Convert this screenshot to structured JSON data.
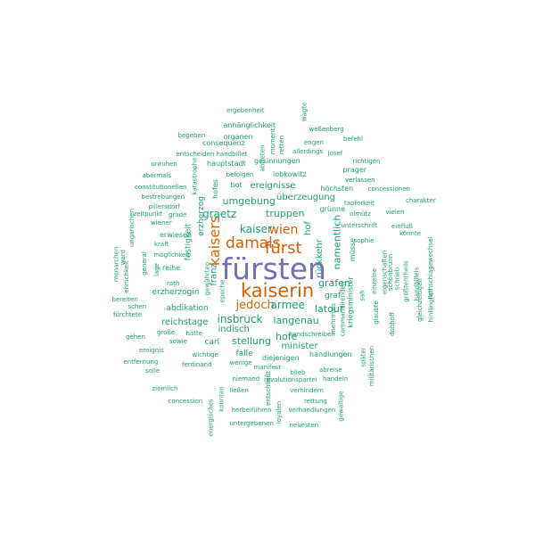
{
  "colors": {
    "primary": "#7570b3",
    "secondary": "#d95f02",
    "tertiary": "#1b9e77"
  },
  "words": [
    {
      "text": "fürsten",
      "weight": "primary"
    },
    {
      "text": "kaiserin",
      "weight": "secondary"
    },
    {
      "text": "damals",
      "weight": "secondary"
    },
    {
      "text": "fürst",
      "weight": "secondary"
    },
    {
      "text": "kaisers",
      "weight": "secondary"
    },
    {
      "text": "wien",
      "weight": "secondary"
    },
    {
      "text": "jedoch",
      "weight": "secondary"
    },
    {
      "text": "armee",
      "weight": "tertiary"
    },
    {
      "text": "kaiser",
      "weight": "tertiary"
    },
    {
      "text": "graetz",
      "weight": "tertiary"
    },
    {
      "text": "truppen",
      "weight": "tertiary"
    },
    {
      "text": "grafen",
      "weight": "tertiary"
    },
    {
      "text": "insbruck",
      "weight": "tertiary"
    },
    {
      "text": "langenau",
      "weight": "tertiary"
    },
    {
      "text": "latour",
      "weight": "tertiary"
    },
    {
      "text": "stellung",
      "weight": "tertiary"
    },
    {
      "text": "hofe",
      "weight": "tertiary"
    },
    {
      "text": "namentlich",
      "weight": "tertiary"
    },
    {
      "text": "rückkehr",
      "weight": "tertiary"
    },
    {
      "text": "umgebung",
      "weight": "tertiary"
    },
    {
      "text": "ereignisse",
      "weight": "tertiary"
    },
    {
      "text": "überzeugung",
      "weight": "tertiary"
    },
    {
      "text": "indisch",
      "weight": "tertiary"
    },
    {
      "text": "minister",
      "weight": "tertiary"
    },
    {
      "text": "reichstage",
      "weight": "tertiary"
    },
    {
      "text": "franz",
      "weight": "tertiary"
    },
    {
      "text": "erzherzog",
      "weight": "tertiary"
    },
    {
      "text": "festigkeit",
      "weight": "tertiary"
    },
    {
      "text": "hof",
      "weight": "tertiary"
    },
    {
      "text": "graf",
      "weight": "tertiary"
    },
    {
      "text": "abdikation",
      "weight": "tertiary"
    },
    {
      "text": "erzherzogin",
      "weight": "tertiary"
    },
    {
      "text": "carl",
      "weight": "tertiary"
    },
    {
      "text": "falle",
      "weight": "tertiary"
    },
    {
      "text": "höchsten",
      "weight": "tertiary"
    },
    {
      "text": "grünne",
      "weight": "tertiary"
    },
    {
      "text": "hauptstadt",
      "weight": "tertiary"
    },
    {
      "text": "lobkowitz",
      "weight": "tertiary"
    },
    {
      "text": "gesinnungen",
      "weight": "tertiary"
    },
    {
      "text": "bot",
      "weight": "tertiary"
    },
    {
      "text": "hofes",
      "weight": "tertiary"
    },
    {
      "text": "ergebenheit",
      "weight": "tertiary"
    },
    {
      "text": "wagte",
      "weight": "tertiary"
    },
    {
      "text": "anhänglichkeit",
      "weight": "tertiary"
    },
    {
      "text": "weßenberg",
      "weight": "tertiary"
    },
    {
      "text": "begeben",
      "weight": "tertiary"
    },
    {
      "text": "organen",
      "weight": "tertiary"
    },
    {
      "text": "moment",
      "weight": "tertiary"
    },
    {
      "text": "retten",
      "weight": "tertiary"
    },
    {
      "text": "engen",
      "weight": "tertiary"
    },
    {
      "text": "befehl",
      "weight": "tertiary"
    },
    {
      "text": "consequenz",
      "weight": "tertiary"
    },
    {
      "text": "entscheiden",
      "weight": "tertiary"
    },
    {
      "text": "handbillet",
      "weight": "tertiary"
    },
    {
      "text": "abtreten",
      "weight": "tertiary"
    },
    {
      "text": "allerdings",
      "weight": "tertiary"
    },
    {
      "text": "josef",
      "weight": "tertiary"
    },
    {
      "text": "unruhen",
      "weight": "tertiary"
    },
    {
      "text": "richtigen",
      "weight": "tertiary"
    },
    {
      "text": "abermals",
      "weight": "tertiary"
    },
    {
      "text": "katastrophe",
      "weight": "tertiary"
    },
    {
      "text": "befolgen",
      "weight": "tertiary"
    },
    {
      "text": "prager",
      "weight": "tertiary"
    },
    {
      "text": "verlassen",
      "weight": "tertiary"
    },
    {
      "text": "constitutionellen",
      "weight": "tertiary"
    },
    {
      "text": "concessionen",
      "weight": "tertiary"
    },
    {
      "text": "bestrebungen",
      "weight": "tertiary"
    },
    {
      "text": "tapferkeit",
      "weight": "tertiary"
    },
    {
      "text": "charakter",
      "weight": "tertiary"
    },
    {
      "text": "pillersdorf",
      "weight": "tertiary"
    },
    {
      "text": "olmütz",
      "weight": "tertiary"
    },
    {
      "text": "vielen",
      "weight": "tertiary"
    },
    {
      "text": "zeitpunkt",
      "weight": "tertiary"
    },
    {
      "text": "grade",
      "weight": "tertiary"
    },
    {
      "text": "wiener",
      "weight": "tertiary"
    },
    {
      "text": "ungarischen",
      "weight": "tertiary"
    },
    {
      "text": "unterschrift",
      "weight": "tertiary"
    },
    {
      "text": "einfluß",
      "weight": "tertiary"
    },
    {
      "text": "erwiesen",
      "weight": "tertiary"
    },
    {
      "text": "müsse",
      "weight": "tertiary"
    },
    {
      "text": "sophie",
      "weight": "tertiary"
    },
    {
      "text": "könnte",
      "weight": "tertiary"
    },
    {
      "text": "möglichkeit",
      "weight": "tertiary"
    },
    {
      "text": "kraft",
      "weight": "tertiary"
    },
    {
      "text": "ward",
      "weight": "tertiary"
    },
    {
      "text": "eigenschaften",
      "weight": "tertiary"
    },
    {
      "text": "schönbrunn",
      "weight": "tertiary"
    },
    {
      "text": "einzelne",
      "weight": "tertiary"
    },
    {
      "text": "schrieb",
      "weight": "tertiary"
    },
    {
      "text": "größtentheils",
      "weight": "tertiary"
    },
    {
      "text": "handbilleis",
      "weight": "tertiary"
    },
    {
      "text": "rathschlagewechsel",
      "weight": "tertiary"
    },
    {
      "text": "gewährten",
      "weight": "tertiary"
    },
    {
      "text": "epoche",
      "weight": "tertiary"
    },
    {
      "text": "reihe",
      "weight": "tertiary"
    },
    {
      "text": "rath",
      "weight": "tertiary"
    },
    {
      "text": "lage",
      "weight": "tertiary"
    },
    {
      "text": "general",
      "weight": "tertiary"
    },
    {
      "text": "monarchen",
      "weight": "tertiary"
    },
    {
      "text": "ehrlichkeit",
      "weight": "tertiary"
    },
    {
      "text": "bereiten",
      "weight": "tertiary"
    },
    {
      "text": "schen",
      "weight": "tertiary"
    },
    {
      "text": "fürchtete",
      "weight": "tertiary"
    },
    {
      "text": "hinlänglich",
      "weight": "tertiary"
    },
    {
      "text": "gleichzeitigen",
      "weight": "tertiary"
    },
    {
      "text": "commandirenden",
      "weight": "tertiary"
    },
    {
      "text": "sah",
      "weight": "tertiary"
    },
    {
      "text": "kriegsminister",
      "weight": "tertiary"
    },
    {
      "text": "glaubte",
      "weight": "tertiary"
    },
    {
      "text": "dobhoff",
      "weight": "tertiary"
    },
    {
      "text": "mehrmals",
      "weight": "tertiary"
    },
    {
      "text": "handschreiben",
      "weight": "tertiary"
    },
    {
      "text": "große",
      "weight": "tertiary"
    },
    {
      "text": "hätte",
      "weight": "tertiary"
    },
    {
      "text": "gehen",
      "weight": "tertiary"
    },
    {
      "text": "sowie",
      "weight": "tertiary"
    },
    {
      "text": "ereignis",
      "weight": "tertiary"
    },
    {
      "text": "wichtige",
      "weight": "tertiary"
    },
    {
      "text": "diejenigen",
      "weight": "tertiary"
    },
    {
      "text": "handlungen",
      "weight": "tertiary"
    },
    {
      "text": "entfernung",
      "weight": "tertiary"
    },
    {
      "text": "ferdinand",
      "weight": "tertiary"
    },
    {
      "text": "wenige",
      "weight": "tertiary"
    },
    {
      "text": "manifest",
      "weight": "tertiary"
    },
    {
      "text": "blieb",
      "weight": "tertiary"
    },
    {
      "text": "abreise",
      "weight": "tertiary"
    },
    {
      "text": "solle",
      "weight": "tertiary"
    },
    {
      "text": "niemand",
      "weight": "tertiary"
    },
    {
      "text": "revolutionspartei",
      "weight": "tertiary"
    },
    {
      "text": "handeln",
      "weight": "tertiary"
    },
    {
      "text": "ziemlich",
      "weight": "tertiary"
    },
    {
      "text": "ließen",
      "weight": "tertiary"
    },
    {
      "text": "verhindern",
      "weight": "tertiary"
    },
    {
      "text": "später",
      "weight": "tertiary"
    },
    {
      "text": "militärischen",
      "weight": "tertiary"
    },
    {
      "text": "concession",
      "weight": "tertiary"
    },
    {
      "text": "entschließt",
      "weight": "tertiary"
    },
    {
      "text": "rettung",
      "weight": "tertiary"
    },
    {
      "text": "konnten",
      "weight": "tertiary"
    },
    {
      "text": "herbeiführen",
      "weight": "tertiary"
    },
    {
      "text": "verhandlungen",
      "weight": "tertiary"
    },
    {
      "text": "gewaltige",
      "weight": "tertiary"
    },
    {
      "text": "energisches",
      "weight": "tertiary"
    },
    {
      "text": "loyalen",
      "weight": "tertiary"
    },
    {
      "text": "untergebenen",
      "weight": "tertiary"
    },
    {
      "text": "neuesten",
      "weight": "tertiary"
    },
    {
      "text": "offiziere",
      "weight": "tertiary"
    },
    {
      "text": "denjenigen",
      "weight": "tertiary"
    }
  ]
}
